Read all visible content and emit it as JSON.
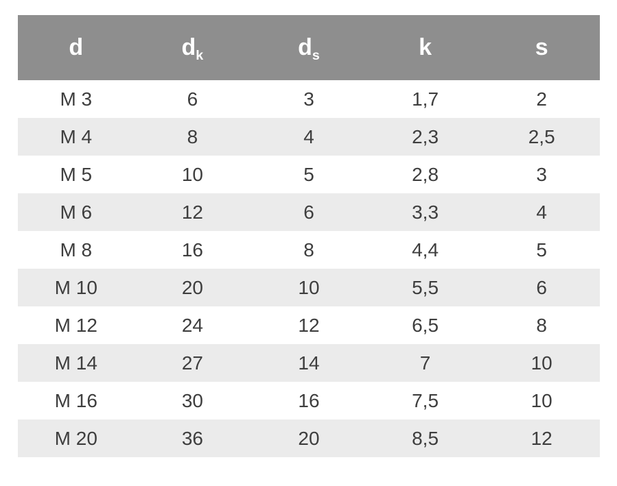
{
  "colors": {
    "page_bg": "#ffffff",
    "header_bg": "#8e8e8e",
    "header_text": "#ffffff",
    "row_bg": "#ffffff",
    "row_alt_bg": "#ebebeb",
    "body_text": "#3e3e3e"
  },
  "chart_data": {
    "type": "table",
    "title": "",
    "columns": [
      {
        "base": "d",
        "sub": ""
      },
      {
        "base": "d",
        "sub": "k"
      },
      {
        "base": "d",
        "sub": "s"
      },
      {
        "base": "k",
        "sub": ""
      },
      {
        "base": "s",
        "sub": ""
      }
    ],
    "rows": [
      [
        "M 3",
        "6",
        "3",
        "1,7",
        "2"
      ],
      [
        "M 4",
        "8",
        "4",
        "2,3",
        "2,5"
      ],
      [
        "M 5",
        "10",
        "5",
        "2,8",
        "3"
      ],
      [
        "M 6",
        "12",
        "6",
        "3,3",
        "4"
      ],
      [
        "M 8",
        "16",
        "8",
        "4,4",
        "5"
      ],
      [
        "M 10",
        "20",
        "10",
        "5,5",
        "6"
      ],
      [
        "M 12",
        "24",
        "12",
        "6,5",
        "8"
      ],
      [
        "M 14",
        "27",
        "14",
        "7",
        "10"
      ],
      [
        "M 16",
        "30",
        "16",
        "7,5",
        "10"
      ],
      [
        "M 20",
        "36",
        "20",
        "8,5",
        "12"
      ]
    ]
  }
}
